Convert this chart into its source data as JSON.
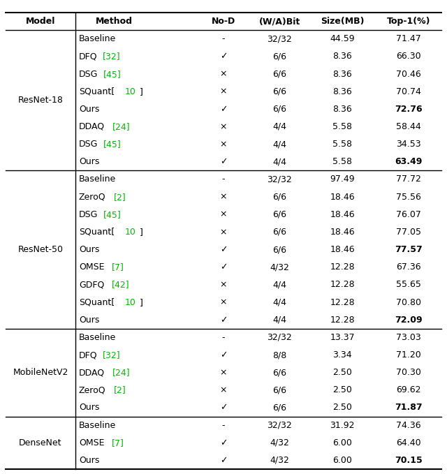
{
  "header": [
    "Model",
    "Method",
    "No-D",
    "(W/A)Bit",
    "Size(MB)",
    "Top-1(%)"
  ],
  "sections": [
    {
      "model": "ResNet-18",
      "rows": [
        {
          "method_parts": [
            {
              "text": "Baseline",
              "color": "black"
            }
          ],
          "nod": "-",
          "wabit": "32/32",
          "size": "44.59",
          "top1": "71.47",
          "bold": false
        },
        {
          "method_parts": [
            {
              "text": "DFQ",
              "color": "black"
            },
            {
              "text": "[32]",
              "color": "#00bb00"
            }
          ],
          "nod": "✓",
          "wabit": "6/6",
          "size": "8.36",
          "top1": "66.30",
          "bold": false
        },
        {
          "method_parts": [
            {
              "text": "DSG",
              "color": "black"
            },
            {
              "text": "[45]",
              "color": "#00bb00"
            }
          ],
          "nod": "×",
          "wabit": "6/6",
          "size": "8.36",
          "top1": "70.46",
          "bold": false
        },
        {
          "method_parts": [
            {
              "text": "SQuant[",
              "color": "black"
            },
            {
              "text": "10",
              "color": "#00bb00"
            },
            {
              "text": "]",
              "color": "black"
            }
          ],
          "nod": "×",
          "wabit": "6/6",
          "size": "8.36",
          "top1": "70.74",
          "bold": false
        },
        {
          "method_parts": [
            {
              "text": "Ours",
              "color": "black"
            }
          ],
          "nod": "✓",
          "wabit": "6/6",
          "size": "8.36",
          "top1": "72.76",
          "bold": true
        },
        {
          "method_parts": [
            {
              "text": "DDAQ",
              "color": "black"
            },
            {
              "text": "[24]",
              "color": "#00bb00"
            }
          ],
          "nod": "×",
          "wabit": "4/4",
          "size": "5.58",
          "top1": "58.44",
          "bold": false
        },
        {
          "method_parts": [
            {
              "text": "DSG",
              "color": "black"
            },
            {
              "text": "[45]",
              "color": "#00bb00"
            }
          ],
          "nod": "×",
          "wabit": "4/4",
          "size": "5.58",
          "top1": "34.53",
          "bold": false
        },
        {
          "method_parts": [
            {
              "text": "Ours",
              "color": "black"
            }
          ],
          "nod": "✓",
          "wabit": "4/4",
          "size": "5.58",
          "top1": "63.49",
          "bold": true
        }
      ]
    },
    {
      "model": "ResNet-50",
      "rows": [
        {
          "method_parts": [
            {
              "text": "Baseline",
              "color": "black"
            }
          ],
          "nod": "-",
          "wabit": "32/32",
          "size": "97.49",
          "top1": "77.72",
          "bold": false
        },
        {
          "method_parts": [
            {
              "text": "ZeroQ",
              "color": "black"
            },
            {
              "text": "[2]",
              "color": "#00bb00"
            }
          ],
          "nod": "×",
          "wabit": "6/6",
          "size": "18.46",
          "top1": "75.56",
          "bold": false
        },
        {
          "method_parts": [
            {
              "text": "DSG",
              "color": "black"
            },
            {
              "text": "[45]",
              "color": "#00bb00"
            }
          ],
          "nod": "×",
          "wabit": "6/6",
          "size": "18.46",
          "top1": "76.07",
          "bold": false
        },
        {
          "method_parts": [
            {
              "text": "SQuant[",
              "color": "black"
            },
            {
              "text": "10",
              "color": "#00bb00"
            },
            {
              "text": "]",
              "color": "black"
            }
          ],
          "nod": "×",
          "wabit": "6/6",
          "size": "18.46",
          "top1": "77.05",
          "bold": false
        },
        {
          "method_parts": [
            {
              "text": "Ours",
              "color": "black"
            }
          ],
          "nod": "✓",
          "wabit": "6/6",
          "size": "18.46",
          "top1": "77.57",
          "bold": true
        },
        {
          "method_parts": [
            {
              "text": "OMSE",
              "color": "black"
            },
            {
              "text": "[7]",
              "color": "#00bb00"
            }
          ],
          "nod": "✓",
          "wabit": "4/32",
          "size": "12.28",
          "top1": "67.36",
          "bold": false
        },
        {
          "method_parts": [
            {
              "text": "GDFQ",
              "color": "black"
            },
            {
              "text": "[42]",
              "color": "#00bb00"
            }
          ],
          "nod": "×",
          "wabit": "4/4",
          "size": "12.28",
          "top1": "55.65",
          "bold": false
        },
        {
          "method_parts": [
            {
              "text": "SQuant[",
              "color": "black"
            },
            {
              "text": "10",
              "color": "#00bb00"
            },
            {
              "text": "]",
              "color": "black"
            }
          ],
          "nod": "×",
          "wabit": "4/4",
          "size": "12.28",
          "top1": "70.80",
          "bold": false
        },
        {
          "method_parts": [
            {
              "text": "Ours",
              "color": "black"
            }
          ],
          "nod": "✓",
          "wabit": "4/4",
          "size": "12.28",
          "top1": "72.09",
          "bold": true
        }
      ]
    },
    {
      "model": "MobileNetV2",
      "rows": [
        {
          "method_parts": [
            {
              "text": "Baseline",
              "color": "black"
            }
          ],
          "nod": "-",
          "wabit": "32/32",
          "size": "13.37",
          "top1": "73.03",
          "bold": false
        },
        {
          "method_parts": [
            {
              "text": "DFQ",
              "color": "black"
            },
            {
              "text": "[32]",
              "color": "#00bb00"
            }
          ],
          "nod": "✓",
          "wabit": "8/8",
          "size": "3.34",
          "top1": "71.20",
          "bold": false
        },
        {
          "method_parts": [
            {
              "text": "DDAQ",
              "color": "black"
            },
            {
              "text": "[24]",
              "color": "#00bb00"
            }
          ],
          "nod": "×",
          "wabit": "6/6",
          "size": "2.50",
          "top1": "70.30",
          "bold": false
        },
        {
          "method_parts": [
            {
              "text": "ZeroQ",
              "color": "black"
            },
            {
              "text": "[2]",
              "color": "#00bb00"
            }
          ],
          "nod": "×",
          "wabit": "6/6",
          "size": "2.50",
          "top1": "69.62",
          "bold": false
        },
        {
          "method_parts": [
            {
              "text": "Ours",
              "color": "black"
            }
          ],
          "nod": "✓",
          "wabit": "6/6",
          "size": "2.50",
          "top1": "71.87",
          "bold": true
        }
      ]
    },
    {
      "model": "DenseNet",
      "rows": [
        {
          "method_parts": [
            {
              "text": "Baseline",
              "color": "black"
            }
          ],
          "nod": "-",
          "wabit": "32/32",
          "size": "31.92",
          "top1": "74.36",
          "bold": false
        },
        {
          "method_parts": [
            {
              "text": "OMSE",
              "color": "black"
            },
            {
              "text": "[7]",
              "color": "#00bb00"
            }
          ],
          "nod": "✓",
          "wabit": "4/32",
          "size": "6.00",
          "top1": "64.40",
          "bold": false
        },
        {
          "method_parts": [
            {
              "text": "Ours",
              "color": "black"
            }
          ],
          "nod": "✓",
          "wabit": "4/32",
          "size": "6.00",
          "top1": "70.15",
          "bold": true
        }
      ]
    }
  ],
  "font_size": 9.0,
  "bg_color": "white",
  "line_color": "black"
}
